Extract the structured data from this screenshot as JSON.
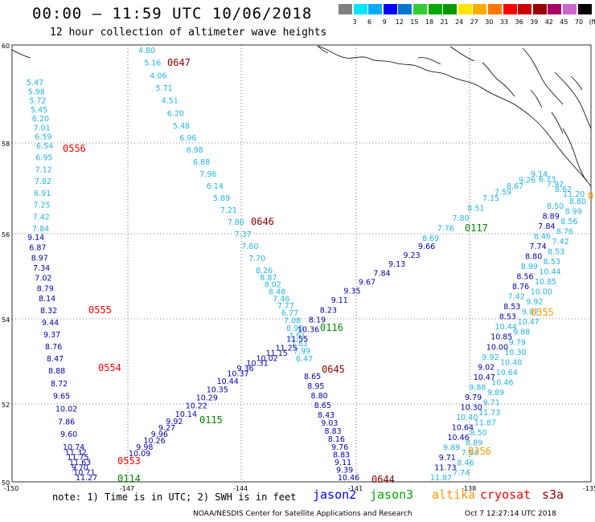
{
  "title": "00:00 – 11:59 UTC 10/06/2018",
  "subtitle": "12 hour collection of altimeter wave heights",
  "legend": {
    "unit": "(ft)",
    "colors": [
      "#808080",
      "#00e5ff",
      "#00aaff",
      "#0000ff",
      "#0077cc",
      "#33cc33",
      "#00aa00",
      "#009900",
      "#ffe600",
      "#ffaa00",
      "#ff7700",
      "#ff0000",
      "#cc0000",
      "#990000",
      "#aa0066",
      "#cc66cc",
      "#000000"
    ],
    "labels": [
      "3",
      "6",
      "9",
      "12",
      "15",
      "18",
      "21",
      "24",
      "27",
      "30",
      "33",
      "36",
      "39",
      "42",
      "45",
      "70"
    ]
  },
  "map": {
    "lat_labels": [
      "60",
      "58",
      "56",
      "54",
      "52",
      "50"
    ],
    "lon_labels": [
      "-150",
      "-147",
      "-144",
      "-141",
      "-138",
      "-135"
    ]
  },
  "tracks": {
    "cyan_a": {
      "color": "#22b4e6",
      "values": [
        "4.80",
        "5.16",
        "4.06",
        "5.71",
        "4.51",
        "6.20",
        "5.48",
        "6.96",
        "6.98",
        "6.88",
        "7.96",
        "6.14",
        "5.89",
        "7.21",
        "7.80",
        "7.37",
        "7.60",
        "7.70",
        "8.26",
        "8.87",
        "8.02",
        "8.48",
        "7.46",
        "7.77",
        "6.77",
        "7.08",
        "8.90",
        "7.91",
        "7.61",
        "7.99",
        "6.47"
      ]
    },
    "darkblue_a": {
      "color": "#0000aa",
      "values": [
        "8.65",
        "8.95",
        "8.80",
        "8.65",
        "8.43",
        "9.03",
        "8.83",
        "8.16",
        "9.76",
        "8.83",
        "9.11",
        "9.39",
        "10.46"
      ]
    },
    "cyan_b": {
      "color": "#22b4e6",
      "values": [
        "5.47",
        "5.98",
        "5.72",
        "5.45",
        "6.20",
        "7.01",
        "6.59",
        "6.54",
        "6.95",
        "7.12",
        "7.82",
        "6.91",
        "7.25",
        "7.42",
        "7.84"
      ]
    },
    "darkblue_b": {
      "color": "#0000aa",
      "values": [
        "9.14",
        "6.87",
        "8.97",
        "7.34",
        "7.02",
        "8.79",
        "8.14",
        "8.32",
        "9.44",
        "9.37",
        "8.76",
        "8.47",
        "8.88",
        "8.72",
        "9.65",
        "10.02",
        "7.86",
        "9.60",
        "10.74",
        "11.32",
        "11.75",
        "11.63",
        "9.70",
        "10.71",
        "11.27"
      ]
    },
    "ascending_blue": {
      "color": "#0000aa",
      "values": [
        "10.09",
        "9.98",
        "10.26",
        "9.96",
        "9.27",
        "9.92",
        "10.14",
        "10.22",
        "10.29",
        "10.35",
        "10.44",
        "10.37",
        "9.36",
        "10.31",
        "10.02",
        "11.15",
        "11.25",
        "11.55",
        "10.36",
        "8.19",
        "8.23",
        "9.11",
        "9.35",
        "9.67",
        "7.84",
        "9.13",
        "9.23",
        "9.66"
      ]
    },
    "ascending_cyan": {
      "color": "#22b4e6",
      "values": [
        "8.69",
        "7.76",
        "7.80",
        "8.51",
        "7.15",
        "7.59",
        "8.67",
        "9.26",
        "9.14",
        "6.73",
        "7.92",
        "8.62",
        "11.20"
      ]
    },
    "labels": [
      {
        "text": "0647",
        "color": "#8b0000"
      },
      {
        "text": "0556",
        "color": "#ff0000"
      },
      {
        "text": "0646",
        "color": "#8b0000"
      },
      {
        "text": "0117",
        "color": "#008800"
      },
      {
        "text": "0555",
        "color": "#ff0000"
      },
      {
        "text": "0116",
        "color": "#008800"
      },
      {
        "text": "0554",
        "color": "#ff0000"
      },
      {
        "text": "0645",
        "color": "#8b0000"
      },
      {
        "text": "0115",
        "color": "#008800"
      },
      {
        "text": "0553",
        "color": "#ff0000"
      },
      {
        "text": "0114",
        "color": "#008800"
      },
      {
        "text": "0644",
        "color": "#8b0000"
      },
      {
        "text": "0355",
        "color": "#ff9900"
      },
      {
        "text": "0356",
        "color": "#ff9900"
      },
      {
        "text": "0",
        "color": "#ff9900"
      }
    ],
    "east_values": [
      "8.50",
      "8.89",
      "7.84",
      "8.46",
      "7.74",
      "8.80",
      "8.99",
      "8.56",
      "8.76",
      "7.42",
      "8.53",
      "8.53",
      "10.44",
      "10.85",
      "10.00",
      "9.92",
      "9.02",
      "10.47",
      "9.88",
      "9.79",
      "10.30",
      "10.40",
      "10.64",
      "10.46",
      "9.89",
      "9.71",
      "11.73",
      "11.87"
    ]
  },
  "note": "note:  1) Time is in UTC;  2) SWH is in feet",
  "missions": [
    {
      "name": "jason2",
      "color": "#0000ff"
    },
    {
      "name": "jason3",
      "color": "#00aa00"
    },
    {
      "name": "altika",
      "color": "#ff9900"
    },
    {
      "name": "cryosat",
      "color": "#ff0000"
    },
    {
      "name": "s3a",
      "color": "#8b0000"
    }
  ],
  "footer": "NOAA/NESDIS Center for Satellite Applications and Research",
  "footer_time": "Oct  7 12:27:14 UTC 2018"
}
